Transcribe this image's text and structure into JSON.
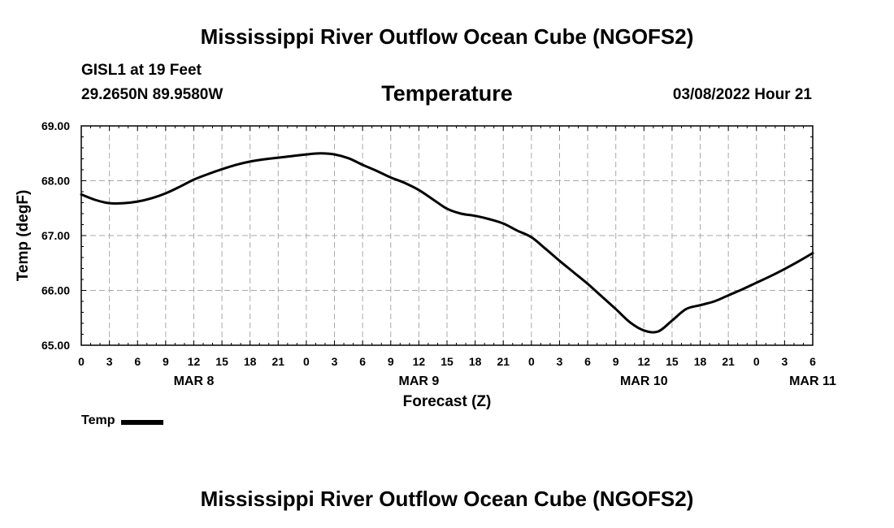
{
  "header": {
    "title": "Mississippi River Outflow Ocean Cube (NGOFS2)",
    "station": "GISL1 at 19 Feet",
    "coords": "29.2650N  89.9580W",
    "variable": "Temperature",
    "datetime": "03/08/2022 Hour 21"
  },
  "footer": {
    "title": "Mississippi River Outflow Ocean Cube (NGOFS2)"
  },
  "legend": {
    "label": "Temp"
  },
  "chart_data": {
    "type": "line",
    "title": "Temperature",
    "xlabel": "Forecast (Z)",
    "ylabel": "Temp (degF)",
    "xlim": [
      0,
      78
    ],
    "ylim": [
      65.0,
      69.0
    ],
    "yticks": [
      65.0,
      66.0,
      67.0,
      68.0,
      69.0
    ],
    "ytick_labels": [
      "65.00",
      "66.00",
      "67.00",
      "68.00",
      "69.00"
    ],
    "xtick_hours": [
      0,
      3,
      6,
      9,
      12,
      15,
      18,
      21,
      24,
      27,
      30,
      33,
      36,
      39,
      42,
      45,
      48,
      51,
      54,
      57,
      60,
      63,
      66,
      69,
      72,
      75,
      78
    ],
    "xtick_labels": [
      "0",
      "3",
      "6",
      "9",
      "12",
      "15",
      "18",
      "21",
      "0",
      "3",
      "6",
      "9",
      "12",
      "15",
      "18",
      "21",
      "0",
      "3",
      "6",
      "9",
      "12",
      "15",
      "18",
      "21",
      "0",
      "3",
      "6"
    ],
    "day_labels": [
      {
        "hour": 12,
        "label": "MAR 8"
      },
      {
        "hour": 36,
        "label": "MAR 9"
      },
      {
        "hour": 60,
        "label": "MAR 10"
      },
      {
        "hour": 78,
        "label": "MAR 11"
      }
    ],
    "grid": true,
    "series": [
      {
        "name": "Temp",
        "color": "#000000",
        "x": [
          0,
          1.5,
          3,
          4.5,
          6,
          7.5,
          9,
          10.5,
          12,
          13.5,
          15,
          16.5,
          18,
          19.5,
          21,
          22.5,
          24,
          25.5,
          27,
          28.5,
          30,
          31.5,
          33,
          34.5,
          36,
          37.5,
          39,
          40.5,
          42,
          43.5,
          45,
          46.5,
          48,
          49.5,
          51,
          52.5,
          54,
          55.5,
          57,
          58.5,
          60,
          61.5,
          63,
          64.5,
          66,
          67.5,
          69,
          70.5,
          72,
          73.5,
          75,
          76.5,
          78
        ],
        "y": [
          67.75,
          67.65,
          67.59,
          67.59,
          67.62,
          67.68,
          67.77,
          67.89,
          68.02,
          68.12,
          68.21,
          68.29,
          68.35,
          68.39,
          68.42,
          68.45,
          68.48,
          68.5,
          68.48,
          68.41,
          68.29,
          68.18,
          68.06,
          67.96,
          67.83,
          67.66,
          67.49,
          67.4,
          67.36,
          67.3,
          67.22,
          67.09,
          66.97,
          66.76,
          66.54,
          66.33,
          66.12,
          65.89,
          65.66,
          65.42,
          65.27,
          65.25,
          65.45,
          65.66,
          65.73,
          65.8,
          65.91,
          66.02,
          66.14,
          66.26,
          66.39,
          66.53,
          66.68
        ]
      }
    ]
  }
}
